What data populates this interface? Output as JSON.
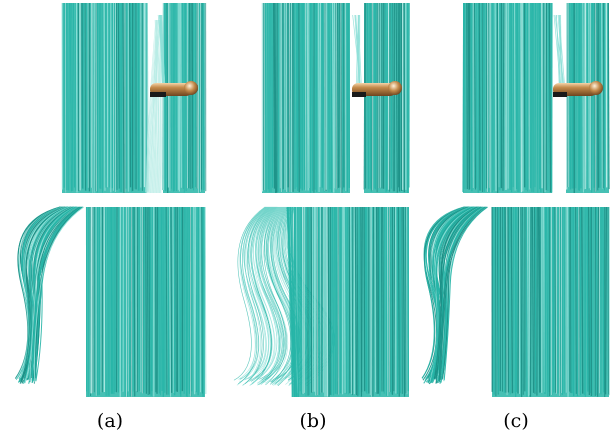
{
  "figure": {
    "captions": [
      "(a)",
      "(b)",
      "(c)"
    ]
  },
  "colors": {
    "hair": "#27b5a7",
    "hair_dark": "#1b8f85",
    "hair_light": "#8fe0d8",
    "rod": "#b27a3d",
    "rod_highlight": "#f1d1a6"
  }
}
